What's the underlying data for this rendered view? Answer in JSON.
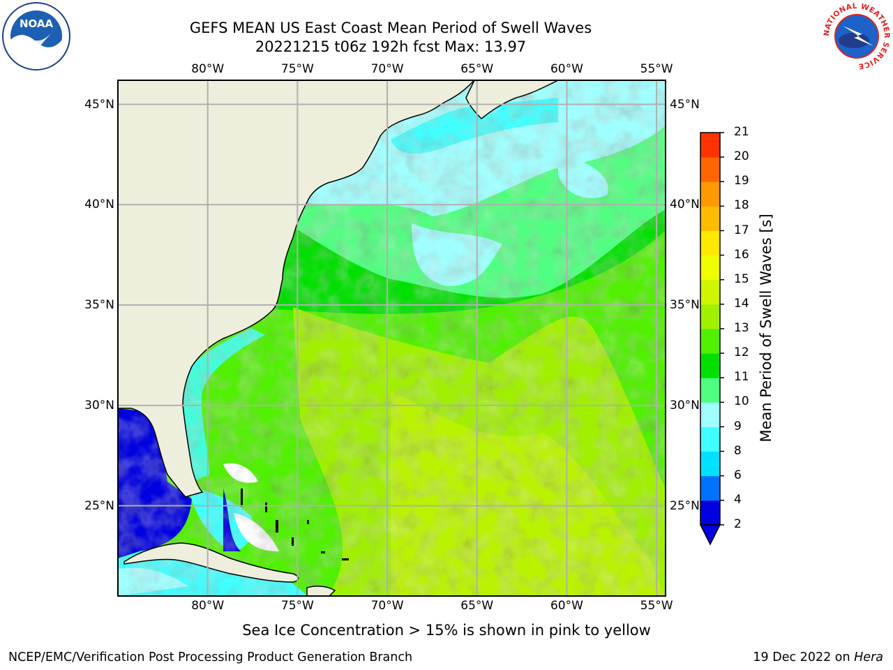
{
  "title": {
    "line1": "GEFS MEAN US East Coast Mean Period of Swell Waves",
    "line2": "20221215 t06z 192h fcst   Max: 13.97"
  },
  "map": {
    "lon_labels": [
      "80°W",
      "75°W",
      "70°W",
      "65°W",
      "60°W",
      "55°W"
    ],
    "lat_labels": [
      "45°N",
      "40°N",
      "35°N",
      "30°N",
      "25°N"
    ],
    "lon_range": [
      -85,
      -54.5
    ],
    "lat_range": [
      20.5,
      46.2
    ],
    "grid": true,
    "land_color": "#eeeedd",
    "grid_color": "#b0b0b0"
  },
  "colorbar": {
    "title": "Mean Period of Swell Waves [s]",
    "ticks": [
      "2",
      "4",
      "6",
      "8",
      "9",
      "10",
      "11",
      "12",
      "13",
      "14",
      "15",
      "16",
      "17",
      "18",
      "19",
      "20",
      "21"
    ],
    "colors": [
      "#0000e0",
      "#0070ff",
      "#00e0ff",
      "#40ffff",
      "#a0ffff",
      "#50ff80",
      "#00e000",
      "#50f000",
      "#a0f000",
      "#d0f500",
      "#f0ff00",
      "#ffe800",
      "#ffbb00",
      "#ff9900",
      "#ff6600",
      "#ff3300",
      "#ff0000"
    ],
    "extend_color": "#0000e0"
  },
  "ice_note": "Sea Ice Concentration > 15% is shown in pink to yellow",
  "footer": {
    "left": "NCEP/EMC/Verification Post Processing Product Generation Branch",
    "right_prefix": "19 Dec 2022 on ",
    "right_machine": "Hera"
  },
  "logos": {
    "noaa_text": "NOAA",
    "nws_text": "NATIONAL WEATHER SERVICE"
  }
}
